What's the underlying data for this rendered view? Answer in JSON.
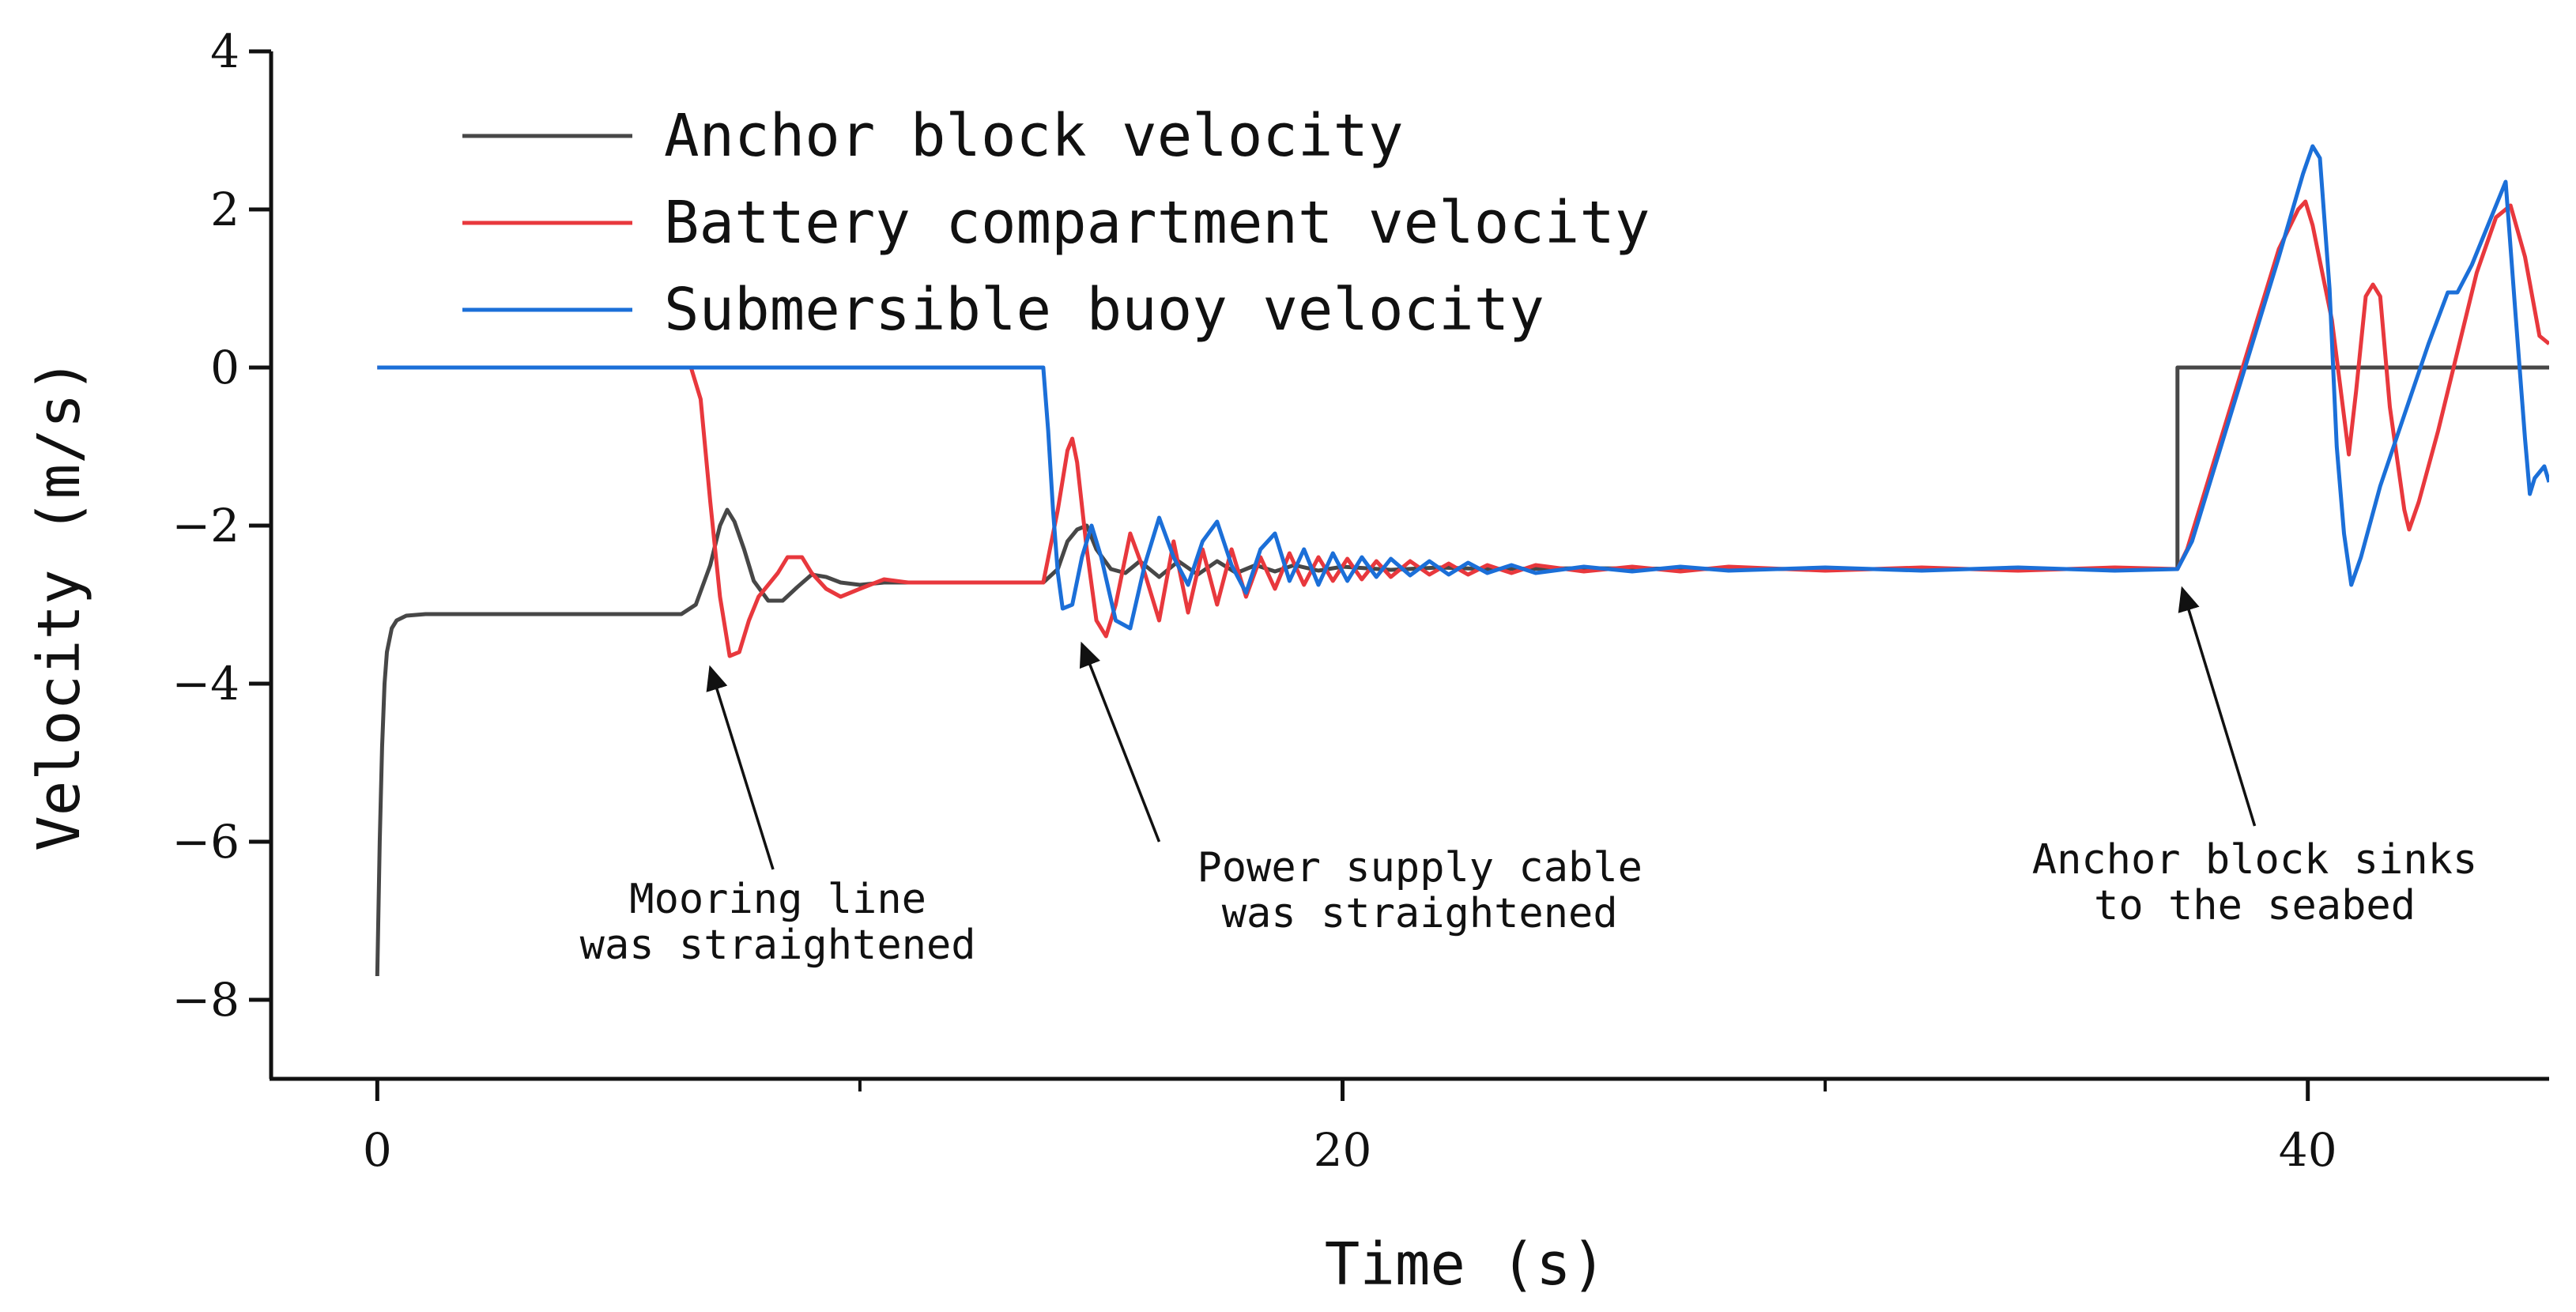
{
  "chart_data": {
    "type": "line",
    "xlabel": "Time (s)",
    "ylabel": "Velocity (m/s)",
    "xlim": [
      -2.2,
      45
    ],
    "ylim": [
      -9,
      4
    ],
    "xticks": [
      0,
      20,
      40
    ],
    "xticks_minor": [
      10,
      30
    ],
    "yticks": [
      4,
      2,
      0,
      -2,
      -4,
      -6,
      -8
    ],
    "grid": false,
    "legend_position": "top-left",
    "series": [
      {
        "name": "Anchor block velocity",
        "color": "#474747",
        "points": [
          [
            0,
            -7.7
          ],
          [
            0.05,
            -6.0
          ],
          [
            0.1,
            -4.8
          ],
          [
            0.15,
            -4.0
          ],
          [
            0.2,
            -3.6
          ],
          [
            0.3,
            -3.3
          ],
          [
            0.4,
            -3.2
          ],
          [
            0.6,
            -3.14
          ],
          [
            1,
            -3.12
          ],
          [
            3,
            -3.12
          ],
          [
            5,
            -3.12
          ],
          [
            6.3,
            -3.12
          ],
          [
            6.6,
            -3.0
          ],
          [
            6.9,
            -2.5
          ],
          [
            7.1,
            -2.0
          ],
          [
            7.25,
            -1.8
          ],
          [
            7.4,
            -1.95
          ],
          [
            7.6,
            -2.3
          ],
          [
            7.8,
            -2.7
          ],
          [
            8.1,
            -2.95
          ],
          [
            8.4,
            -2.95
          ],
          [
            8.7,
            -2.78
          ],
          [
            9.0,
            -2.62
          ],
          [
            9.3,
            -2.65
          ],
          [
            9.6,
            -2.72
          ],
          [
            10,
            -2.75
          ],
          [
            10.5,
            -2.72
          ],
          [
            11,
            -2.72
          ],
          [
            12,
            -2.72
          ],
          [
            13.8,
            -2.72
          ],
          [
            14.1,
            -2.55
          ],
          [
            14.3,
            -2.2
          ],
          [
            14.5,
            -2.05
          ],
          [
            14.7,
            -2.0
          ],
          [
            14.9,
            -2.3
          ],
          [
            15.2,
            -2.55
          ],
          [
            15.5,
            -2.6
          ],
          [
            15.8,
            -2.45
          ],
          [
            16.2,
            -2.65
          ],
          [
            16.6,
            -2.45
          ],
          [
            17.0,
            -2.62
          ],
          [
            17.4,
            -2.45
          ],
          [
            17.8,
            -2.6
          ],
          [
            18.2,
            -2.5
          ],
          [
            18.6,
            -2.58
          ],
          [
            19,
            -2.5
          ],
          [
            19.5,
            -2.57
          ],
          [
            20,
            -2.52
          ],
          [
            21,
            -2.56
          ],
          [
            22,
            -2.53
          ],
          [
            23,
            -2.55
          ],
          [
            25,
            -2.54
          ],
          [
            28,
            -2.55
          ],
          [
            32,
            -2.55
          ],
          [
            35,
            -2.55
          ],
          [
            37.3,
            -2.55
          ],
          [
            37.3,
            0.0
          ],
          [
            45,
            0.0
          ]
        ]
      },
      {
        "name": "Battery compartment velocity",
        "color": "#e8383d",
        "points": [
          [
            0,
            0
          ],
          [
            6.5,
            0
          ],
          [
            6.7,
            -0.4
          ],
          [
            6.9,
            -1.7
          ],
          [
            7.1,
            -2.9
          ],
          [
            7.3,
            -3.65
          ],
          [
            7.5,
            -3.6
          ],
          [
            7.7,
            -3.2
          ],
          [
            7.9,
            -2.9
          ],
          [
            8.1,
            -2.75
          ],
          [
            8.3,
            -2.6
          ],
          [
            8.5,
            -2.4
          ],
          [
            8.8,
            -2.4
          ],
          [
            9.0,
            -2.6
          ],
          [
            9.3,
            -2.8
          ],
          [
            9.6,
            -2.9
          ],
          [
            10,
            -2.8
          ],
          [
            10.5,
            -2.68
          ],
          [
            11,
            -2.72
          ],
          [
            12,
            -2.72
          ],
          [
            13.8,
            -2.72
          ],
          [
            14.1,
            -1.8
          ],
          [
            14.3,
            -1.05
          ],
          [
            14.4,
            -0.9
          ],
          [
            14.5,
            -1.2
          ],
          [
            14.7,
            -2.3
          ],
          [
            14.9,
            -3.2
          ],
          [
            15.1,
            -3.4
          ],
          [
            15.3,
            -3.0
          ],
          [
            15.6,
            -2.1
          ],
          [
            15.9,
            -2.6
          ],
          [
            16.2,
            -3.2
          ],
          [
            16.5,
            -2.2
          ],
          [
            16.8,
            -3.1
          ],
          [
            17.1,
            -2.3
          ],
          [
            17.4,
            -3.0
          ],
          [
            17.7,
            -2.3
          ],
          [
            18.0,
            -2.9
          ],
          [
            18.3,
            -2.4
          ],
          [
            18.6,
            -2.8
          ],
          [
            18.9,
            -2.35
          ],
          [
            19.2,
            -2.75
          ],
          [
            19.5,
            -2.4
          ],
          [
            19.8,
            -2.7
          ],
          [
            20.1,
            -2.42
          ],
          [
            20.4,
            -2.68
          ],
          [
            20.7,
            -2.45
          ],
          [
            21.0,
            -2.65
          ],
          [
            21.4,
            -2.45
          ],
          [
            21.8,
            -2.62
          ],
          [
            22.2,
            -2.48
          ],
          [
            22.6,
            -2.62
          ],
          [
            23.0,
            -2.5
          ],
          [
            23.5,
            -2.6
          ],
          [
            24,
            -2.5
          ],
          [
            25,
            -2.58
          ],
          [
            26,
            -2.52
          ],
          [
            27,
            -2.58
          ],
          [
            28,
            -2.52
          ],
          [
            30,
            -2.57
          ],
          [
            32,
            -2.53
          ],
          [
            34,
            -2.57
          ],
          [
            36,
            -2.53
          ],
          [
            37.3,
            -2.55
          ],
          [
            37.5,
            -2.3
          ],
          [
            38.0,
            -1.3
          ],
          [
            38.5,
            -0.3
          ],
          [
            39.0,
            0.7
          ],
          [
            39.4,
            1.5
          ],
          [
            39.8,
            2.0
          ],
          [
            39.95,
            2.1
          ],
          [
            40.1,
            1.8
          ],
          [
            40.5,
            0.6
          ],
          [
            40.85,
            -1.1
          ],
          [
            41.0,
            -0.3
          ],
          [
            41.2,
            0.9
          ],
          [
            41.35,
            1.05
          ],
          [
            41.5,
            0.9
          ],
          [
            41.7,
            -0.5
          ],
          [
            42.0,
            -1.8
          ],
          [
            42.1,
            -2.05
          ],
          [
            42.3,
            -1.7
          ],
          [
            42.7,
            -0.8
          ],
          [
            43.1,
            0.2
          ],
          [
            43.5,
            1.2
          ],
          [
            43.9,
            1.9
          ],
          [
            44.2,
            2.05
          ],
          [
            44.5,
            1.4
          ],
          [
            44.8,
            0.4
          ],
          [
            45,
            0.3
          ]
        ]
      },
      {
        "name": "Submersible buoy velocity",
        "color": "#1b6fd8",
        "points": [
          [
            0,
            0
          ],
          [
            13.8,
            0
          ],
          [
            13.9,
            -0.8
          ],
          [
            14.0,
            -1.8
          ],
          [
            14.1,
            -2.6
          ],
          [
            14.2,
            -3.05
          ],
          [
            14.4,
            -3.0
          ],
          [
            14.6,
            -2.4
          ],
          [
            14.8,
            -2.0
          ],
          [
            15.0,
            -2.4
          ],
          [
            15.3,
            -3.2
          ],
          [
            15.6,
            -3.3
          ],
          [
            15.9,
            -2.5
          ],
          [
            16.2,
            -1.9
          ],
          [
            16.5,
            -2.4
          ],
          [
            16.8,
            -2.75
          ],
          [
            17.1,
            -2.2
          ],
          [
            17.4,
            -1.95
          ],
          [
            17.7,
            -2.5
          ],
          [
            18.0,
            -2.85
          ],
          [
            18.3,
            -2.3
          ],
          [
            18.6,
            -2.1
          ],
          [
            18.9,
            -2.7
          ],
          [
            19.2,
            -2.3
          ],
          [
            19.5,
            -2.75
          ],
          [
            19.8,
            -2.35
          ],
          [
            20.1,
            -2.7
          ],
          [
            20.4,
            -2.4
          ],
          [
            20.7,
            -2.65
          ],
          [
            21.0,
            -2.42
          ],
          [
            21.4,
            -2.63
          ],
          [
            21.8,
            -2.45
          ],
          [
            22.2,
            -2.62
          ],
          [
            22.6,
            -2.47
          ],
          [
            23,
            -2.6
          ],
          [
            23.5,
            -2.5
          ],
          [
            24,
            -2.6
          ],
          [
            25,
            -2.52
          ],
          [
            26,
            -2.58
          ],
          [
            27,
            -2.52
          ],
          [
            28,
            -2.57
          ],
          [
            30,
            -2.53
          ],
          [
            32,
            -2.57
          ],
          [
            34,
            -2.53
          ],
          [
            36,
            -2.57
          ],
          [
            37.3,
            -2.55
          ],
          [
            37.6,
            -2.2
          ],
          [
            38.2,
            -1.0
          ],
          [
            38.8,
            0.2
          ],
          [
            39.4,
            1.4
          ],
          [
            39.9,
            2.45
          ],
          [
            40.1,
            2.8
          ],
          [
            40.25,
            2.65
          ],
          [
            40.45,
            1.0
          ],
          [
            40.6,
            -1.0
          ],
          [
            40.75,
            -2.1
          ],
          [
            40.9,
            -2.75
          ],
          [
            41.1,
            -2.4
          ],
          [
            41.5,
            -1.5
          ],
          [
            42.0,
            -0.6
          ],
          [
            42.5,
            0.3
          ],
          [
            42.9,
            0.95
          ],
          [
            43.1,
            0.95
          ],
          [
            43.4,
            1.3
          ],
          [
            43.8,
            1.9
          ],
          [
            44.1,
            2.35
          ],
          [
            44.3,
            0.7
          ],
          [
            44.5,
            -0.9
          ],
          [
            44.6,
            -1.6
          ],
          [
            44.7,
            -1.4
          ],
          [
            44.9,
            -1.25
          ],
          [
            45,
            -1.45
          ]
        ]
      }
    ],
    "annotations": [
      {
        "lines": [
          "Mooring line",
          "was straightened"
        ],
        "text_anchor_data": [
          8.3,
          -6.9
        ],
        "arrow_from_data": [
          8.2,
          -6.35
        ],
        "arrow_to_data": [
          6.9,
          -3.8
        ]
      },
      {
        "lines": [
          "Power supply cable",
          "was straightened"
        ],
        "text_anchor_data": [
          21.6,
          -6.5
        ],
        "arrow_from_data": [
          16.2,
          -6.0
        ],
        "arrow_to_data": [
          14.6,
          -3.5
        ]
      },
      {
        "lines": [
          "Anchor block sinks",
          "to the seabed"
        ],
        "text_anchor_data": [
          38.9,
          -6.4
        ],
        "arrow_from_data": [
          38.9,
          -5.8
        ],
        "arrow_to_data": [
          37.4,
          -2.8
        ]
      }
    ]
  }
}
